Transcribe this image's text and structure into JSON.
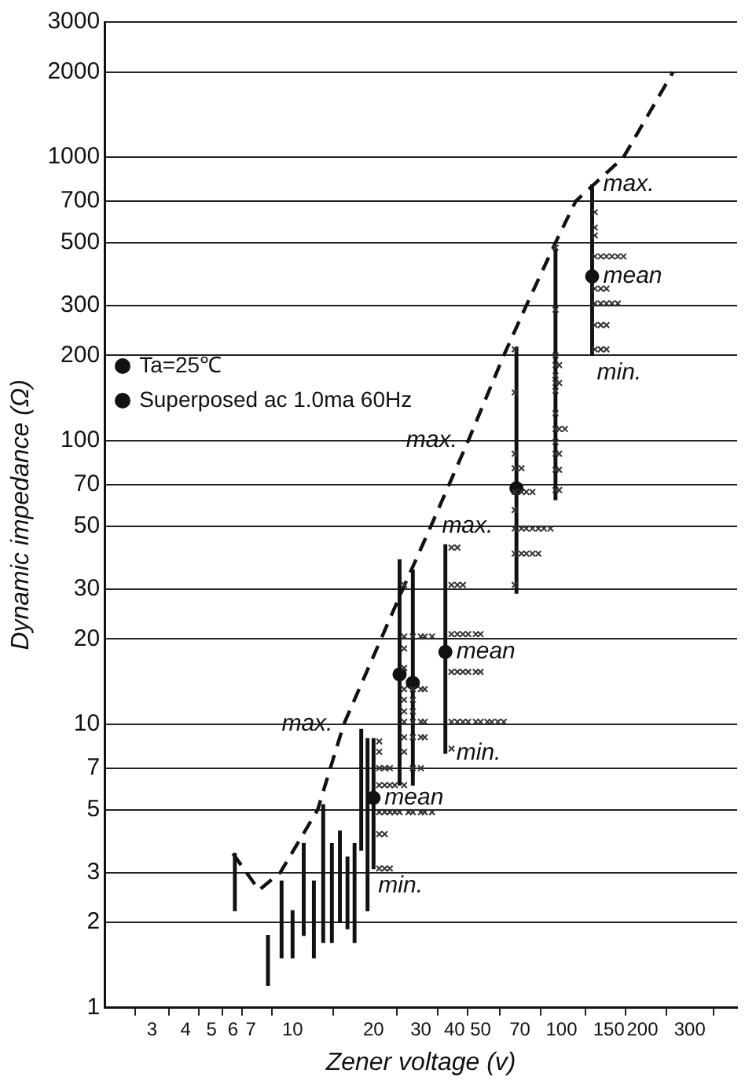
{
  "chart_data": {
    "type": "scatter",
    "xlabel": "Zener voltage (v)",
    "ylabel": "Dynamic impedance (Ω)",
    "log": "xy",
    "grid": "y",
    "xlim": [
      2,
      450
    ],
    "ylim": [
      1,
      3000
    ],
    "xticks": [
      3,
      4,
      5,
      6,
      7,
      10,
      20,
      30,
      40,
      50,
      70,
      100,
      150,
      200,
      300
    ],
    "yticks": [
      1,
      2,
      3,
      5,
      7,
      10,
      20,
      30,
      50,
      70,
      100,
      200,
      300,
      500,
      700,
      1000,
      2000,
      3000
    ],
    "series": [
      {
        "type": "bar",
        "color": "#111111",
        "x": [
          6.1,
          8.1,
          9.1,
          10,
          11,
          12,
          13,
          14,
          15,
          16,
          17,
          18,
          19,
          20,
          25,
          28,
          37,
          68,
          95,
          130
        ],
        "base": [
          2.2,
          1.2,
          1.5,
          1.5,
          1.8,
          1.5,
          1.7,
          1.7,
          2.0,
          1.9,
          1.7,
          3.6,
          2.2,
          3.1,
          6.1,
          6.1,
          7.9,
          29,
          62,
          200
        ],
        "values": [
          1.3,
          0.6,
          1.3,
          0.7,
          2.0,
          1.3,
          3.5,
          2.1,
          2.2,
          1.5,
          2.1,
          6.0,
          6.7,
          5.8,
          31.9,
          28.9,
          35.1,
          185,
          413,
          600
        ]
      },
      {
        "type": "line",
        "color": "#111111",
        "line_style": "dashed",
        "marker": "none",
        "x": [
          6,
          7.5,
          9,
          12.4,
          15.5,
          25.7,
          32.7,
          45,
          61,
          74,
          95,
          113,
          170,
          260
        ],
        "values": [
          3.5,
          2.6,
          3.0,
          5,
          10,
          30,
          50,
          100,
          200,
          300,
          500,
          700,
          1000,
          2000
        ]
      },
      {
        "color": "#111111",
        "marker": "circle",
        "x": [
          20,
          25,
          28,
          37,
          68,
          130
        ],
        "values": [
          5.5,
          15,
          14,
          18,
          68,
          380
        ]
      },
      {
        "color": "#333333",
        "marker": "cross",
        "x": [
          21,
          21,
          21,
          22,
          23,
          21,
          22,
          23,
          24,
          21,
          22,
          23,
          24,
          25,
          27,
          28,
          30,
          31,
          33,
          21,
          22,
          21,
          22,
          23,
          26,
          26,
          28,
          30,
          31,
          33,
          26,
          26,
          26,
          28,
          30,
          31,
          26,
          28,
          26,
          28,
          26,
          28,
          30,
          31,
          26,
          28,
          30,
          31,
          26,
          28,
          30,
          26,
          39,
          41,
          39,
          41,
          43,
          39,
          41,
          43,
          45,
          48,
          50,
          39,
          41,
          43,
          45,
          48,
          50,
          39,
          41,
          43,
          45,
          48,
          50,
          53,
          55,
          58,
          61,
          39,
          67,
          67,
          67,
          67,
          71,
          67,
          71,
          74,
          78,
          67,
          67,
          71,
          74,
          78,
          82,
          86,
          91,
          67,
          71,
          74,
          78,
          82,
          67,
          95,
          95,
          95,
          95,
          98,
          95,
          95,
          98,
          95,
          95,
          95,
          98,
          103,
          95,
          95,
          98,
          95,
          98,
          95,
          98,
          133,
          133,
          133,
          133,
          140,
          147,
          154,
          162,
          170,
          133,
          140,
          147,
          133,
          140,
          147,
          154,
          162,
          133,
          140,
          147,
          133,
          140,
          147
        ],
        "values": [
          8.7,
          8.0,
          7.0,
          7.0,
          7.0,
          6.1,
          6.1,
          6.1,
          6.1,
          4.9,
          4.9,
          4.9,
          4.9,
          4.9,
          4.9,
          4.9,
          4.9,
          4.9,
          4.9,
          4.1,
          4.1,
          3.1,
          3.1,
          3.1,
          31,
          20.4,
          20.4,
          20.4,
          20.4,
          20.4,
          18.5,
          15.8,
          13.3,
          13.3,
          13.3,
          13.3,
          12.2,
          12.2,
          11.1,
          11.1,
          10.2,
          10.2,
          10.2,
          10.2,
          9.0,
          9.0,
          9.0,
          9.0,
          8.0,
          7.0,
          7.0,
          6.1,
          42,
          42,
          31,
          31,
          31,
          20.8,
          20.8,
          20.8,
          20.8,
          20.8,
          20.8,
          15.3,
          15.3,
          15.3,
          15.3,
          15.3,
          15.3,
          10.2,
          10.2,
          10.2,
          10.2,
          10.2,
          10.2,
          10.2,
          10.2,
          10.2,
          10.2,
          8.2,
          210,
          148,
          90,
          80,
          80,
          66,
          66,
          66,
          66,
          57,
          49,
          49,
          49,
          49,
          49,
          49,
          49,
          40,
          40,
          40,
          40,
          40,
          31,
          480,
          290,
          200,
          185,
          185,
          170,
          160,
          160,
          150,
          125,
          110,
          110,
          110,
          99,
          90,
          90,
          79,
          79,
          67,
          67,
          640,
          565,
          530,
          447,
          447,
          447,
          447,
          447,
          447,
          344,
          344,
          344,
          305,
          305,
          305,
          305,
          305,
          256,
          256,
          256,
          210,
          210,
          210
        ]
      }
    ],
    "annotations": [
      "Ta=25℃",
      "Superposed ac 1.0ma 60Hz",
      {
        "text": "max.",
        "x": 45,
        "y": 100
      },
      {
        "text": "max.",
        "x": 15.5,
        "y": 10
      },
      {
        "text": "min.",
        "x": 20,
        "y": 3.1
      },
      {
        "text": "mean",
        "x": 20,
        "y": 5.5
      },
      {
        "text": "max.",
        "x": 32.7,
        "y": 50
      },
      {
        "text": "min.",
        "x": 37,
        "y": 7.9
      },
      {
        "text": "mean",
        "x": 37,
        "y": 18
      },
      {
        "text": "max.",
        "x": 130,
        "y": 800
      },
      {
        "text": "mean",
        "x": 130,
        "y": 380
      },
      {
        "text": "min.",
        "x": 130,
        "y": 200
      }
    ]
  }
}
